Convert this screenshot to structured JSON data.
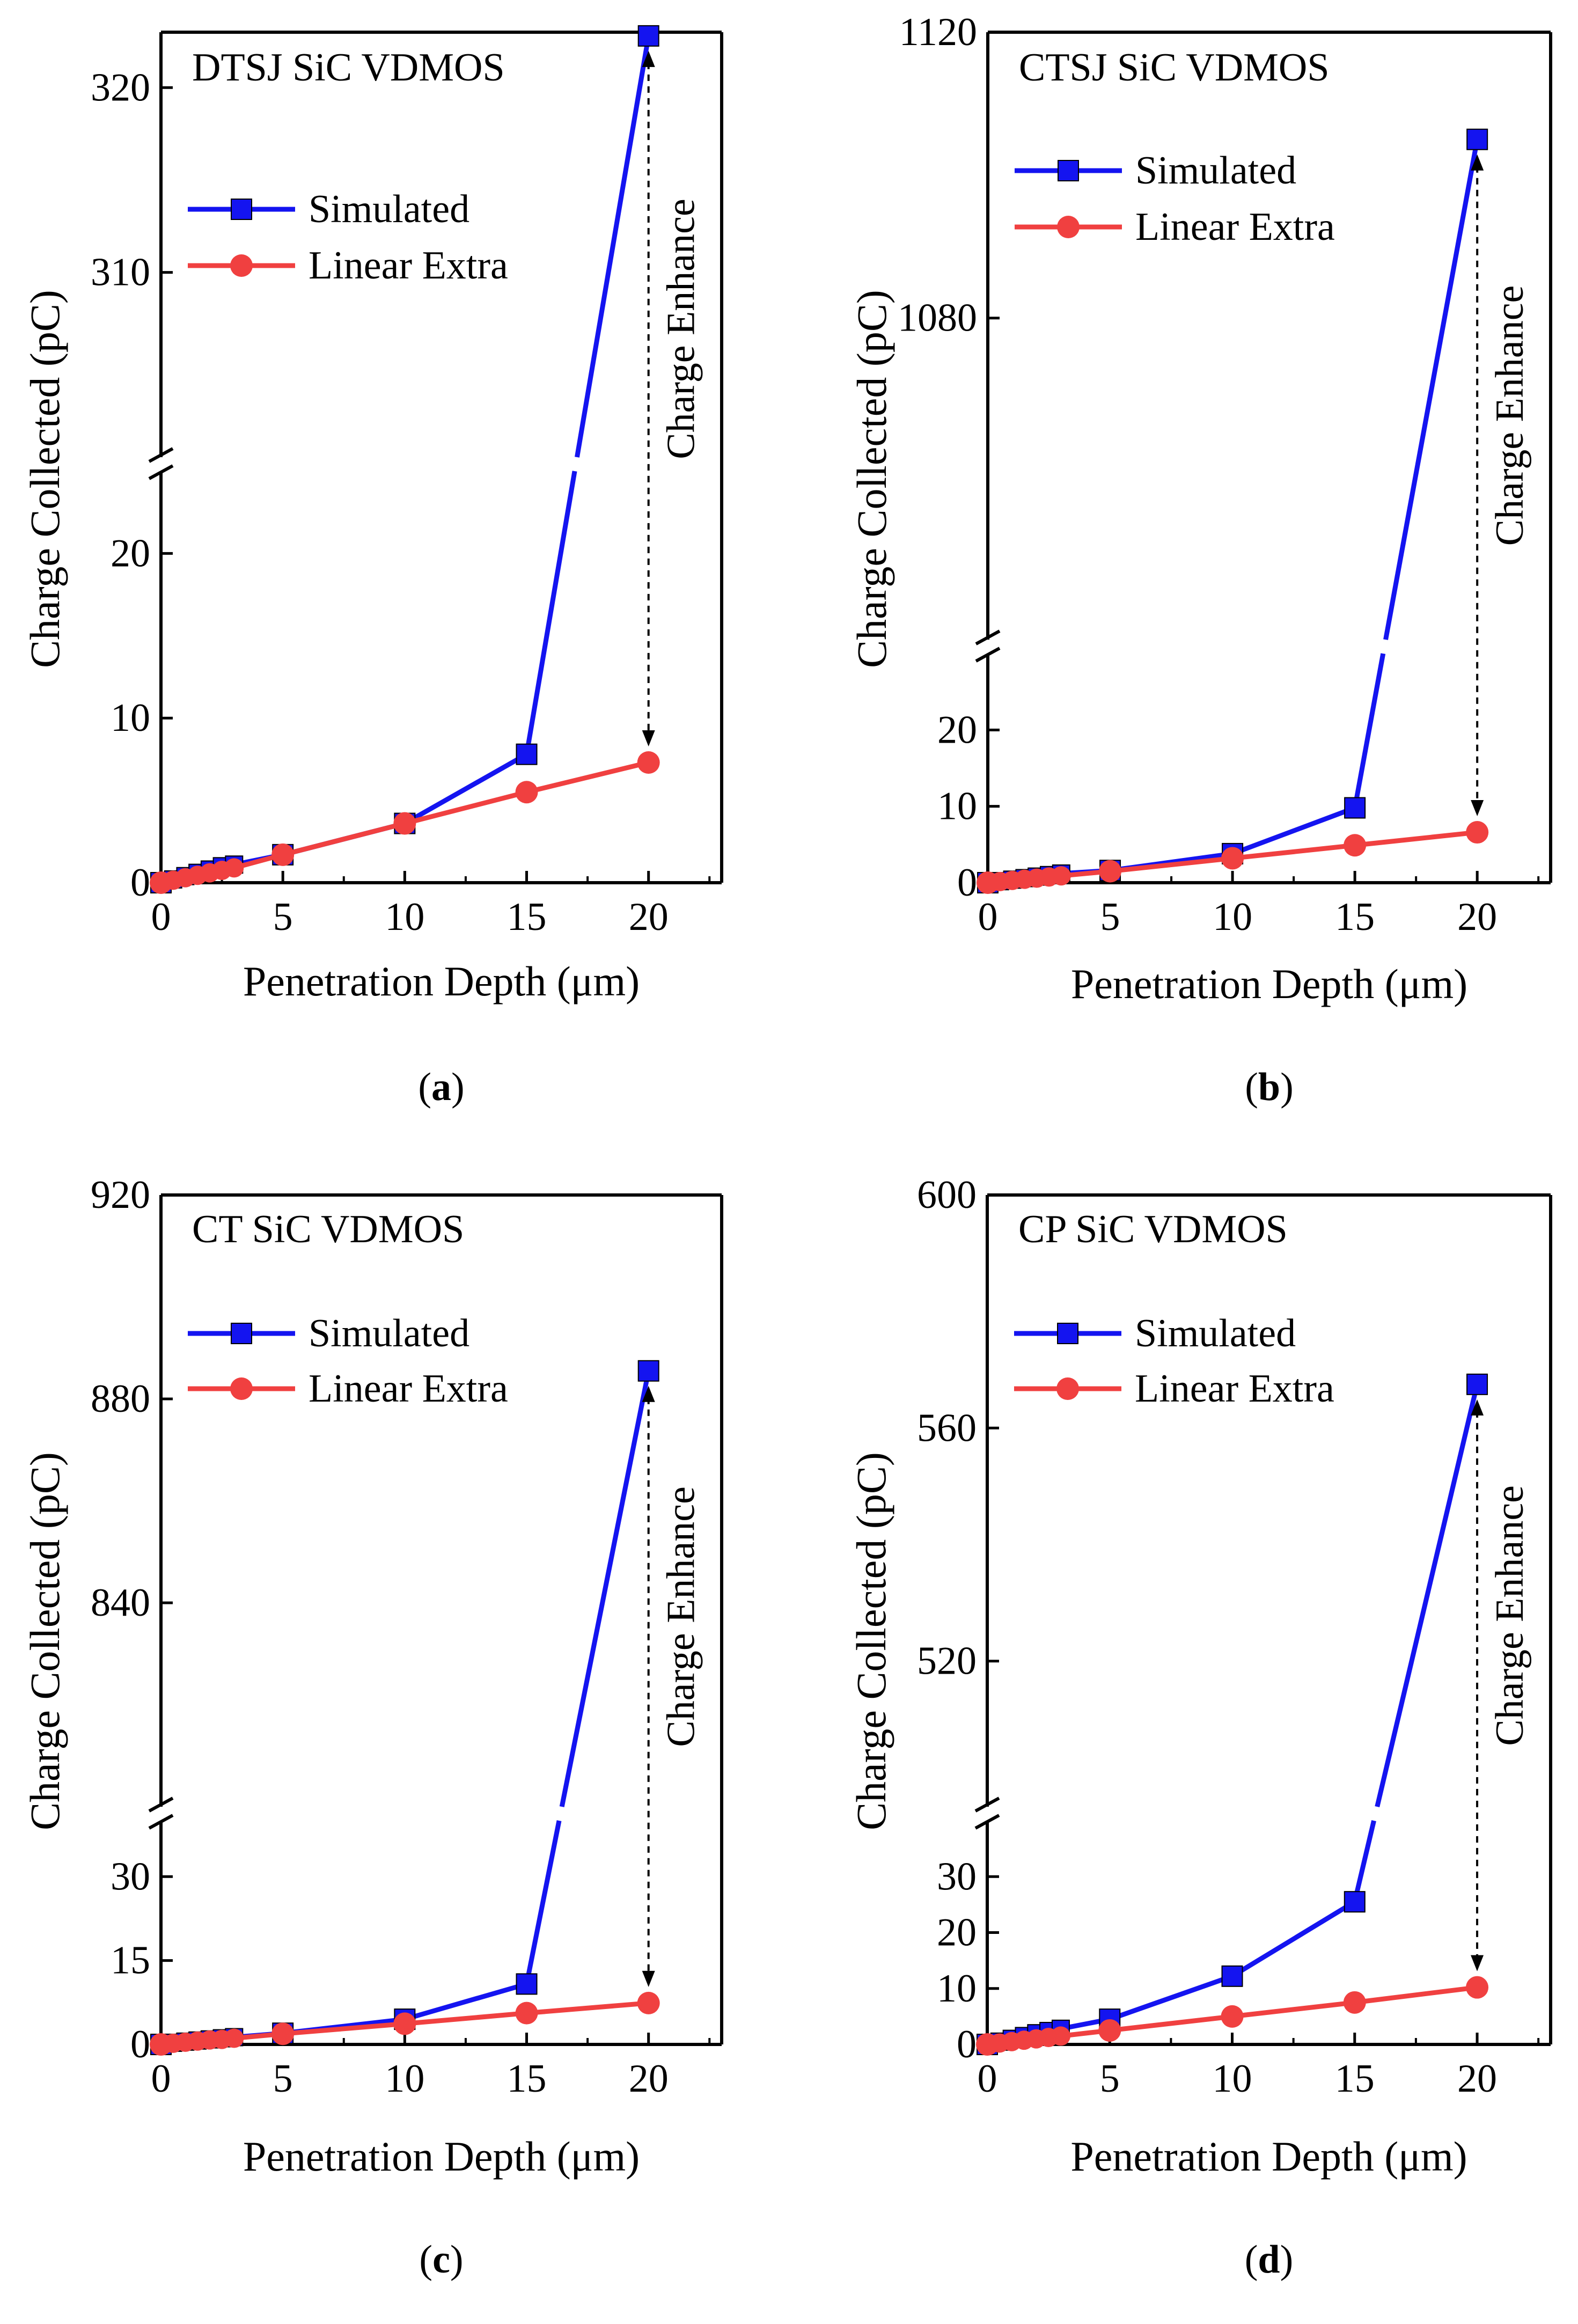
{
  "chart_data": [
    {
      "type": "line",
      "panel_label": "a",
      "title": "DTSJ SiC   VDMOS",
      "xlabel": "Penetration Depth (μm)",
      "ylabel": "Charge Collected  (pC)",
      "annotation": "Charge Enhance",
      "xlim": [
        0,
        23
      ],
      "x_ticks": [
        0,
        5,
        10,
        15,
        20
      ],
      "y_break": true,
      "lower_ylim": [
        0,
        25
      ],
      "lower_ticks": [
        0,
        10,
        20
      ],
      "upper_ylim": [
        300,
        323
      ],
      "upper_ticks": [
        310,
        320
      ],
      "series": [
        {
          "name": "Simulated",
          "color": "#1414f0",
          "marker": "square",
          "x": [
            0,
            0.5,
            1,
            1.5,
            2,
            2.5,
            3,
            5,
            10,
            15,
            20
          ],
          "y": [
            0,
            0.2,
            0.4,
            0.6,
            0.8,
            1.0,
            1.1,
            1.7,
            3.6,
            7.8,
            322.8
          ]
        },
        {
          "name": "Linear Extra",
          "color": "#f04040",
          "marker": "circle",
          "x": [
            0,
            0.5,
            1,
            1.5,
            2,
            2.5,
            3,
            5,
            10,
            15,
            20
          ],
          "y": [
            0,
            0.15,
            0.3,
            0.45,
            0.6,
            0.75,
            0.9,
            1.7,
            3.6,
            5.5,
            7.3
          ]
        }
      ]
    },
    {
      "type": "line",
      "panel_label": "b",
      "title": "CTSJ SiC  VDMOS",
      "xlabel": "Penetration Depth (μm)",
      "ylabel": "Charge Collected  (pC)",
      "annotation": "Charge Enhance",
      "xlim": [
        0,
        23
      ],
      "x_ticks": [
        0,
        5,
        10,
        15,
        20
      ],
      "y_break": true,
      "lower_ylim": [
        0,
        30
      ],
      "lower_ticks": [
        0,
        10,
        20
      ],
      "upper_ylim": [
        1035,
        1120
      ],
      "upper_ticks": [
        1080,
        1120
      ],
      "series": [
        {
          "name": "Simulated",
          "color": "#1414f0",
          "marker": "square",
          "x": [
            0,
            0.5,
            1,
            1.5,
            2,
            2.5,
            3,
            5,
            10,
            15,
            20
          ],
          "y": [
            0,
            0.2,
            0.4,
            0.6,
            0.8,
            1.0,
            1.2,
            1.6,
            3.8,
            9.8,
            1105
          ]
        },
        {
          "name": "Linear Extra",
          "color": "#f04040",
          "marker": "circle",
          "x": [
            0,
            0.5,
            1,
            1.5,
            2,
            2.5,
            3,
            5,
            10,
            15,
            20
          ],
          "y": [
            0,
            0.15,
            0.3,
            0.45,
            0.6,
            0.75,
            0.9,
            1.5,
            3.2,
            4.9,
            6.6
          ]
        }
      ]
    },
    {
      "type": "line",
      "panel_label": "c",
      "title": "CT  SiC  VDMOS",
      "xlabel": "Penetration Depth (μm)",
      "ylabel": "Charge Collected  (pC)",
      "annotation": "Charge Enhance",
      "xlim": [
        0,
        23
      ],
      "x_ticks": [
        0,
        5,
        10,
        15,
        20
      ],
      "y_break": true,
      "lower_ylim": [
        0,
        40
      ],
      "lower_ticks": [
        0,
        15,
        30
      ],
      "upper_ylim": [
        800,
        920
      ],
      "upper_ticks": [
        840,
        880,
        920
      ],
      "series": [
        {
          "name": "Simulated",
          "color": "#1414f0",
          "marker": "square",
          "x": [
            0,
            0.5,
            1,
            1.5,
            2,
            2.5,
            3,
            5,
            10,
            15,
            20
          ],
          "y": [
            0,
            0.3,
            0.5,
            0.7,
            0.9,
            1.1,
            1.3,
            2.0,
            4.5,
            10.8,
            885.5
          ]
        },
        {
          "name": "Linear Extra",
          "color": "#f04040",
          "marker": "circle",
          "x": [
            0,
            0.5,
            1,
            1.5,
            2,
            2.5,
            3,
            5,
            10,
            15,
            20
          ],
          "y": [
            0,
            0.2,
            0.4,
            0.6,
            0.8,
            0.9,
            1.1,
            1.9,
            3.7,
            5.6,
            7.4
          ]
        }
      ]
    },
    {
      "type": "line",
      "panel_label": "d",
      "title": "CP SiC  VDMOS",
      "xlabel": "Penetration Depth (μm)",
      "ylabel": "Charge Collected  (pC)",
      "annotation": "Charge Enhance",
      "xlim": [
        0,
        23
      ],
      "x_ticks": [
        0,
        5,
        10,
        15,
        20
      ],
      "y_break": true,
      "lower_ylim": [
        0,
        40
      ],
      "lower_ticks": [
        0,
        10,
        20,
        30
      ],
      "upper_ylim": [
        495,
        600
      ],
      "upper_ticks": [
        520,
        560,
        600
      ],
      "series": [
        {
          "name": "Simulated",
          "color": "#1414f0",
          "marker": "square",
          "x": [
            0,
            0.5,
            1,
            1.5,
            2,
            2.5,
            3,
            5,
            10,
            15,
            20
          ],
          "y": [
            0,
            0.5,
            1.0,
            1.5,
            2.0,
            2.4,
            2.8,
            4.5,
            12.2,
            25.5,
            567.5
          ]
        },
        {
          "name": "Linear Extra",
          "color": "#f04040",
          "marker": "circle",
          "x": [
            0,
            0.5,
            1,
            1.5,
            2,
            2.5,
            3,
            5,
            10,
            15,
            20
          ],
          "y": [
            0,
            0.25,
            0.5,
            0.75,
            1.0,
            1.25,
            1.5,
            2.5,
            5.0,
            7.5,
            10.2
          ]
        }
      ]
    }
  ]
}
